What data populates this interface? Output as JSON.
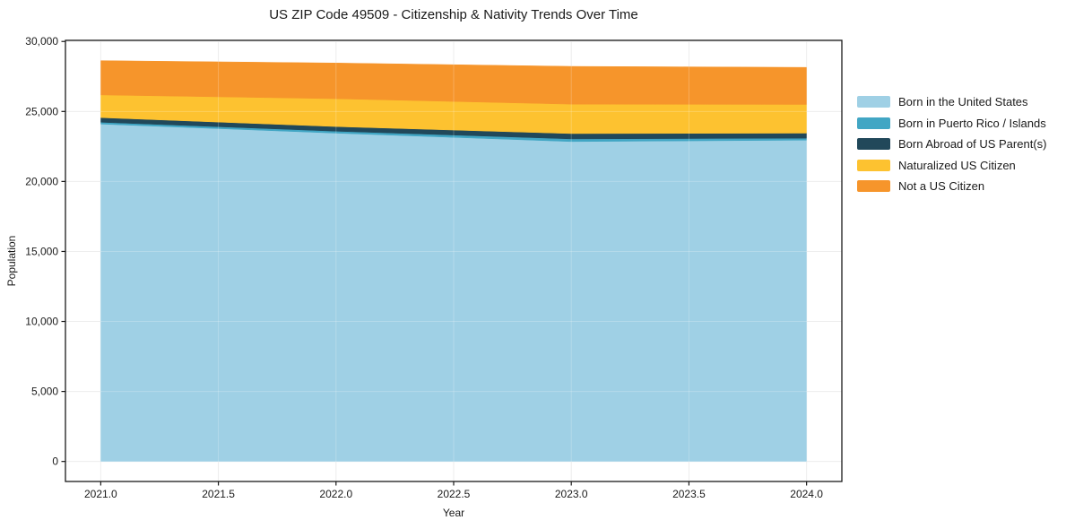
{
  "chart_data": {
    "type": "area",
    "stacked": true,
    "title": "US ZIP Code 49509 - Citizenship & Nativity Trends Over Time",
    "xlabel": "Year",
    "ylabel": "Population",
    "x": [
      2021,
      2022,
      2023,
      2024
    ],
    "series": [
      {
        "name": "Born in the United States",
        "color": "#9fd0e5",
        "values": [
          24100,
          23450,
          22850,
          22950
        ]
      },
      {
        "name": "Born in Puerto Rico / Islands",
        "color": "#41a6c4",
        "values": [
          130,
          140,
          190,
          140
        ]
      },
      {
        "name": "Born Abroad of US Parent(s)",
        "color": "#21485a",
        "values": [
          330,
          330,
          380,
          360
        ]
      },
      {
        "name": "Naturalized US Citizen",
        "color": "#fdc230",
        "values": [
          1620,
          1990,
          2100,
          2050
        ]
      },
      {
        "name": "Not a US Citizen",
        "color": "#f6952b",
        "values": [
          2450,
          2550,
          2700,
          2650
        ]
      }
    ],
    "xticks": [
      2021.0,
      2021.5,
      2022.0,
      2022.5,
      2023.0,
      2023.5,
      2024.0
    ],
    "xtick_labels": [
      "2021.0",
      "2021.5",
      "2022.0",
      "2022.5",
      "2023.0",
      "2023.5",
      "2024.0"
    ],
    "yticks": [
      0,
      5000,
      10000,
      15000,
      20000,
      25000,
      30000
    ],
    "ytick_labels": [
      "0",
      "5,000",
      "10,000",
      "15,000",
      "20,000",
      "25,000",
      "30,000"
    ],
    "xlim": [
      2020.85,
      2024.15
    ],
    "ylim": [
      -1430,
      30080
    ],
    "grid": true,
    "grid_color": "#e9e9e9",
    "axis_color": "#1a1a1a",
    "legend_position": "right"
  }
}
